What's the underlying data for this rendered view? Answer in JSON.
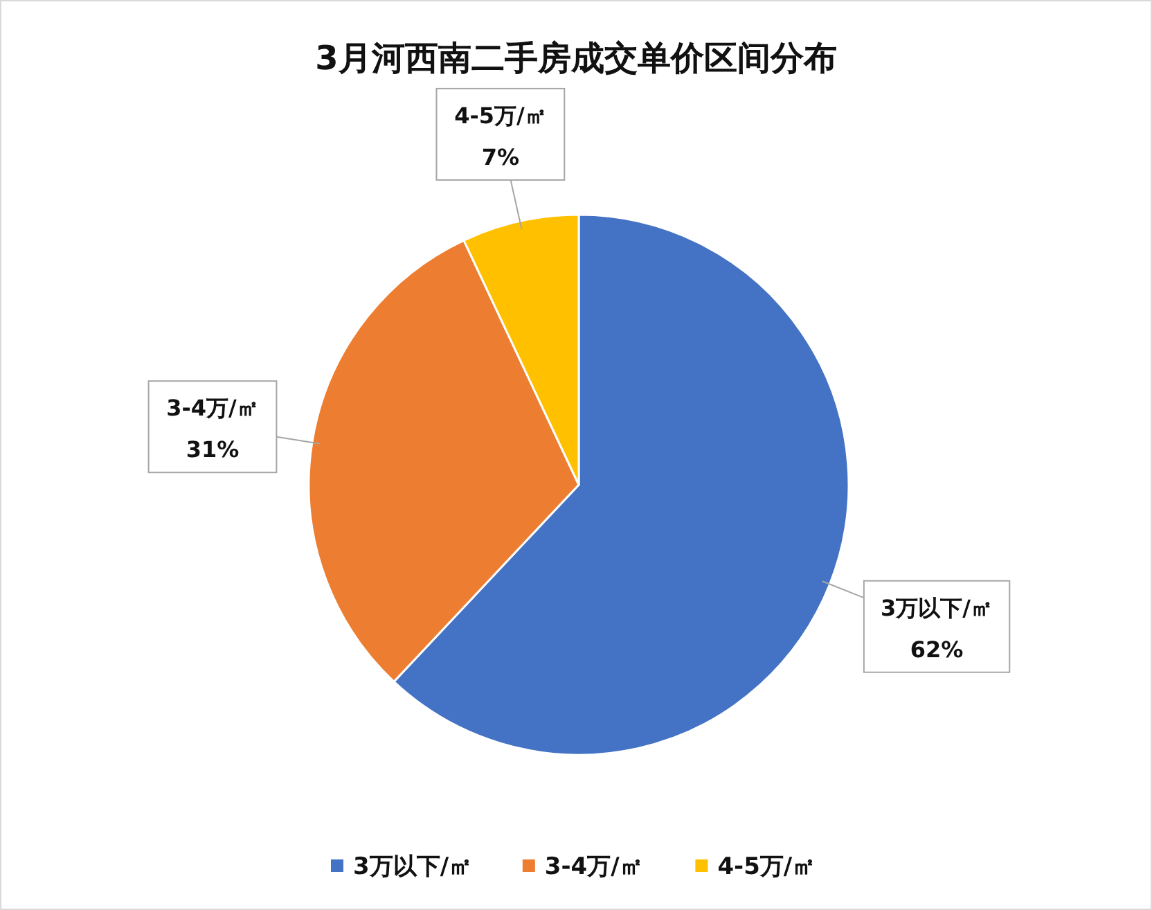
{
  "chart_data": {
    "type": "pie",
    "title": "3月河西南二手房成交单价区间分布",
    "categories": [
      "3万以下/㎡",
      "3-4万/㎡",
      "4-5万/㎡"
    ],
    "values": [
      62,
      31,
      7
    ],
    "colors": [
      "#4472c4",
      "#ed7d31",
      "#ffc000"
    ],
    "value_labels": [
      "62%",
      "31%",
      "7%"
    ],
    "legend": "bottom"
  }
}
